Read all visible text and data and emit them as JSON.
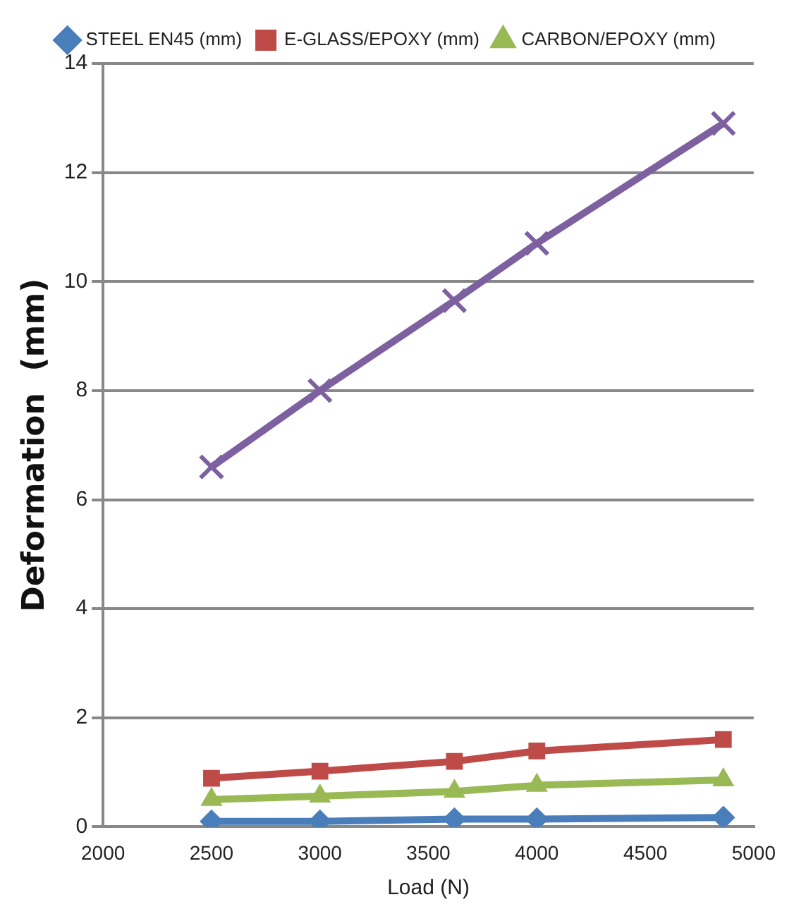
{
  "chart_data": {
    "type": "line",
    "xlabel": "Load (N)",
    "ylabel": "Deformation  (mm)",
    "x": [
      2500,
      3000,
      3620,
      4000,
      4860
    ],
    "series": [
      {
        "name": "STEEL EN45 (mm)",
        "color": "#4a7ebb",
        "marker": "diamond",
        "values": [
          0.1,
          0.1,
          0.14,
          0.14,
          0.17
        ]
      },
      {
        "name": "E-GLASS/EPOXY (mm)",
        "color": "#be4b48",
        "marker": "square",
        "values": [
          0.89,
          1.02,
          1.2,
          1.39,
          1.6
        ]
      },
      {
        "name": "CARBON/EPOXY (mm)",
        "color": "#98b954",
        "marker": "triangle",
        "values": [
          0.5,
          0.56,
          0.65,
          0.76,
          0.86
        ]
      },
      {
        "color": "#7d60a0",
        "marker": "cross",
        "values": [
          6.6,
          8.0,
          9.65,
          10.7,
          12.9
        ]
      }
    ],
    "xlim": [
      2000,
      5000
    ],
    "xticks": [
      2000,
      2500,
      3000,
      3500,
      4000,
      4500,
      5000
    ],
    "ylim": [
      0,
      14
    ],
    "yticks": [
      0,
      2,
      4,
      6,
      8,
      10,
      12,
      14
    ],
    "grid": "y",
    "legend": "top"
  }
}
